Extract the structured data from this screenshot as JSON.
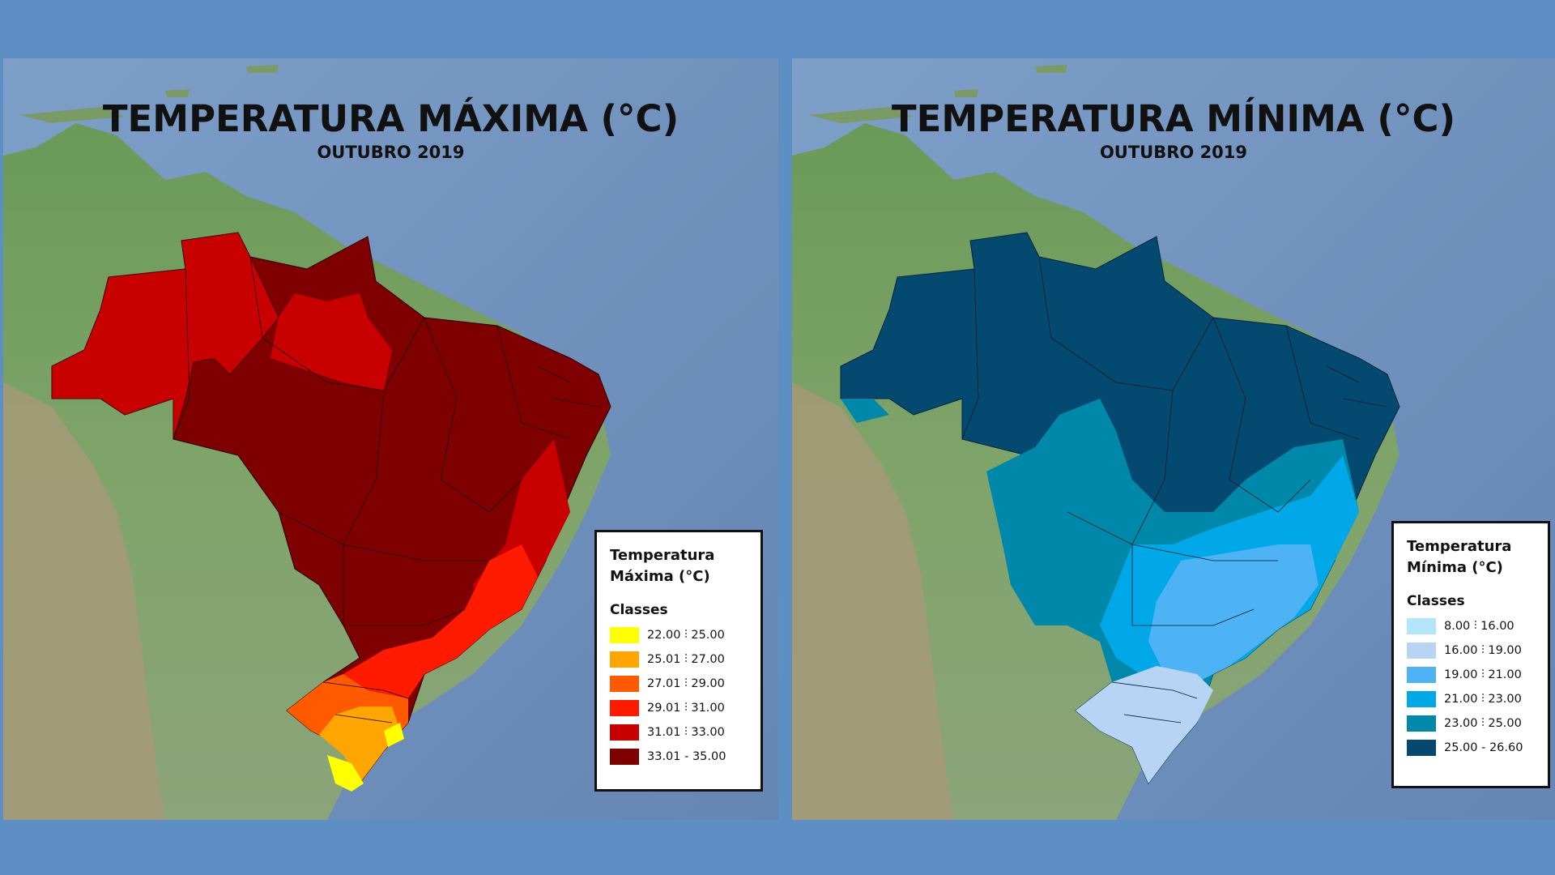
{
  "panels": {
    "max": {
      "title": "TEMPERATURA MÁXIMA (°C)",
      "subtitle": "OUTUBRO 2019",
      "legend": {
        "title_line1": "Temperatura",
        "title_line2": "Máxima (°C)",
        "classes_label": "Classes",
        "items": [
          {
            "label": "22.00 ⫶ 25.00",
            "color": "#ffff00"
          },
          {
            "label": "25.01 ⫶ 27.00",
            "color": "#ffa500"
          },
          {
            "label": "27.01 ⫶ 29.00",
            "color": "#ff5a00"
          },
          {
            "label": "29.01 ⫶ 31.00",
            "color": "#ff1a00"
          },
          {
            "label": "31.01 ⫶ 33.00",
            "color": "#c80000"
          },
          {
            "label": "33.01 - 35.00",
            "color": "#7e0000"
          }
        ]
      }
    },
    "min": {
      "title": "TEMPERATURA MÍNIMA (°C)",
      "subtitle": "OUTUBRO 2019",
      "legend": {
        "title_line1": "Temperatura",
        "title_line2": "Mínima (°C)",
        "classes_label": "Classes",
        "items": [
          {
            "label": "8.00 ⫶ 16.00",
            "color": "#b3e5fc"
          },
          {
            "label": "16.00 ⫶ 19.00",
            "color": "#b8d4f5"
          },
          {
            "label": "19.00 ⫶ 21.00",
            "color": "#4db3f5"
          },
          {
            "label": "21.00 ⫶ 23.00",
            "color": "#00a8e8"
          },
          {
            "label": "23.00 ⫶ 25.00",
            "color": "#0088aa"
          },
          {
            "label": "25.00 - 26.60",
            "color": "#044a70"
          }
        ]
      }
    }
  }
}
